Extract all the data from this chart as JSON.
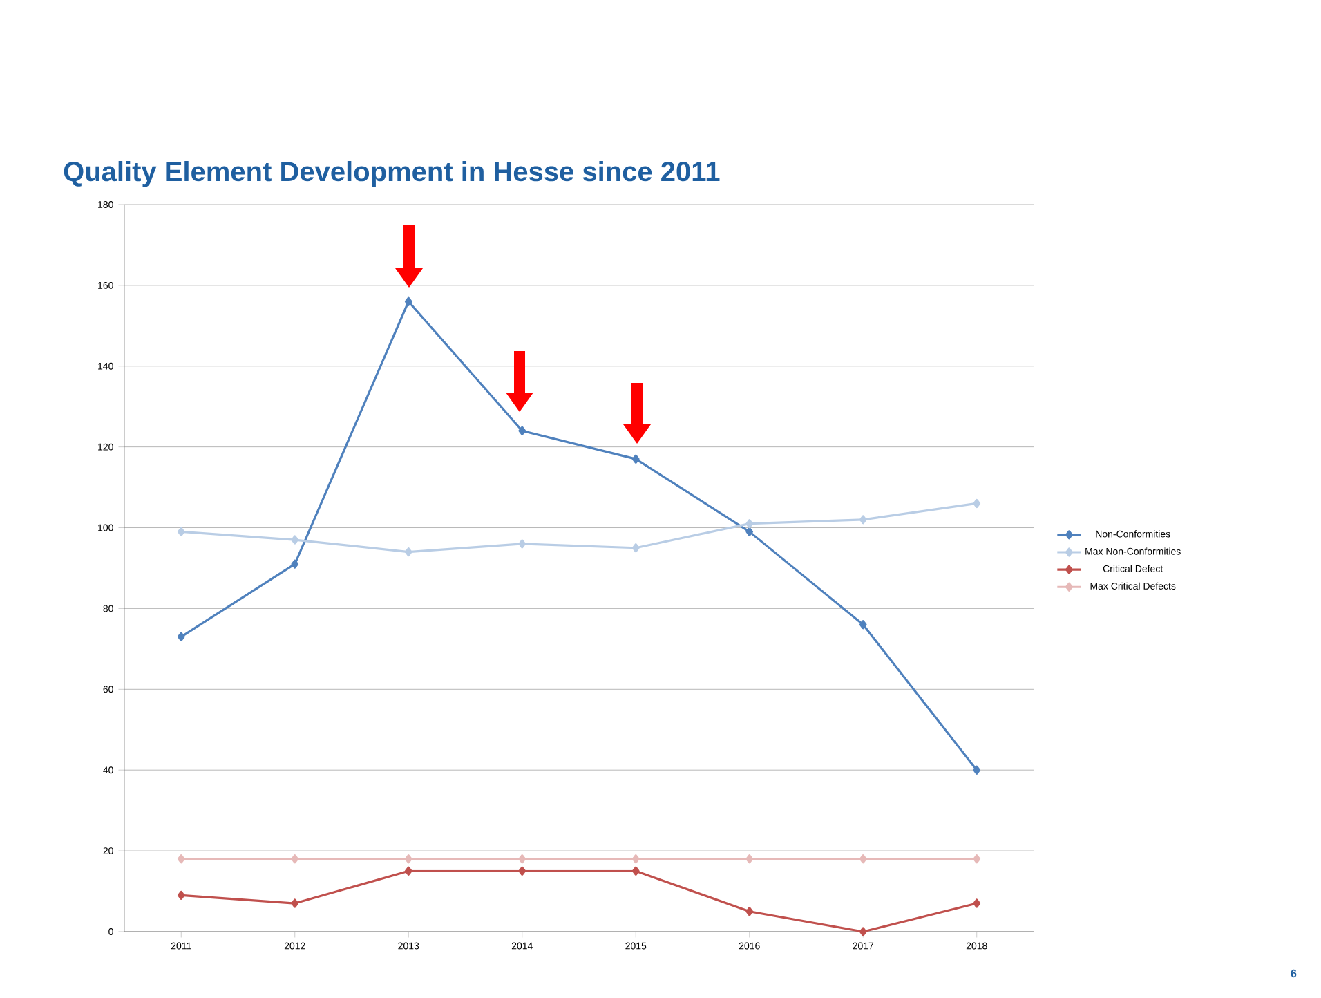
{
  "chart_data": {
    "type": "line",
    "title": "Quality Element Development in Hesse since 2011",
    "categories": [
      "2011",
      "2012",
      "2013",
      "2014",
      "2015",
      "2016",
      "2017",
      "2018"
    ],
    "series": [
      {
        "name": "Non-Conformities",
        "color": "#4f81bd",
        "values": [
          73,
          91,
          156,
          124,
          117,
          99,
          76,
          40
        ]
      },
      {
        "name": "Max Non-Conformities",
        "color": "#b9cde5",
        "values": [
          99,
          97,
          94,
          96,
          95,
          101,
          102,
          106
        ]
      },
      {
        "name": "Critical Defect",
        "color": "#c0504d",
        "values": [
          9,
          7,
          15,
          15,
          15,
          5,
          0,
          7
        ]
      },
      {
        "name": "Max Critical Defects",
        "color": "#e6b9b8",
        "values": [
          18,
          18,
          18,
          18,
          18,
          18,
          18,
          18
        ]
      }
    ],
    "ylim": [
      0,
      180
    ],
    "yticks": [
      0,
      20,
      40,
      60,
      80,
      100,
      120,
      140,
      160,
      180
    ],
    "grid": "y",
    "legend": "right",
    "marker": "diamond",
    "line_style": "solid",
    "annotations": [
      "6"
    ]
  }
}
